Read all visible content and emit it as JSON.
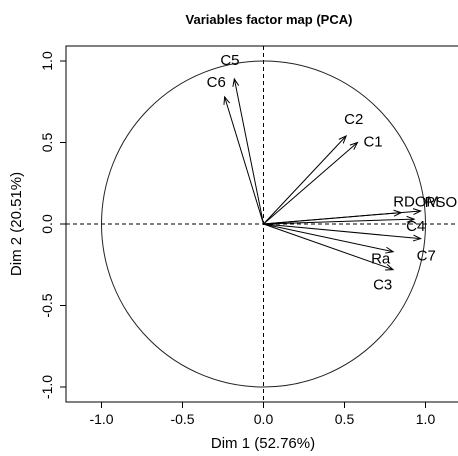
{
  "chart_data": {
    "type": "scatter",
    "title": "Variables factor map (PCA)",
    "xlabel": "Dim 1 (52.76%)",
    "ylabel": "Dim 2 (20.51%)",
    "xlim": [
      -1.2,
      1.2
    ],
    "ylim": [
      -1.1,
      1.1
    ],
    "x_ticks": [
      -1.0,
      -0.5,
      0.0,
      0.5,
      1.0
    ],
    "y_ticks": [
      -1.0,
      -0.5,
      0.0,
      0.5,
      1.0
    ],
    "x_tick_labels": [
      "-1.0",
      "-0.5",
      "0.0",
      "0.5",
      "1.0"
    ],
    "y_tick_labels": [
      "-1.0",
      "-0.5",
      "0.0",
      "0.5",
      "1.0"
    ],
    "unit_circle": true,
    "reference_lines": [
      0,
      0
    ],
    "grid": false,
    "variables": [
      {
        "name": "C5",
        "x": -0.18,
        "y": 0.89
      },
      {
        "name": "C6",
        "x": -0.24,
        "y": 0.78
      },
      {
        "name": "C2",
        "x": 0.51,
        "y": 0.54
      },
      {
        "name": "C1",
        "x": 0.58,
        "y": 0.5
      },
      {
        "name": "RDOM",
        "x": 0.85,
        "y": 0.07
      },
      {
        "name": "RSO",
        "x": 0.97,
        "y": 0.08
      },
      {
        "name": "C4",
        "x": 0.93,
        "y": 0.03
      },
      {
        "name": "C7",
        "x": 0.97,
        "y": -0.09
      },
      {
        "name": "Ra",
        "x": 0.8,
        "y": -0.17
      },
      {
        "name": "C3",
        "x": 0.8,
        "y": -0.28
      }
    ]
  }
}
